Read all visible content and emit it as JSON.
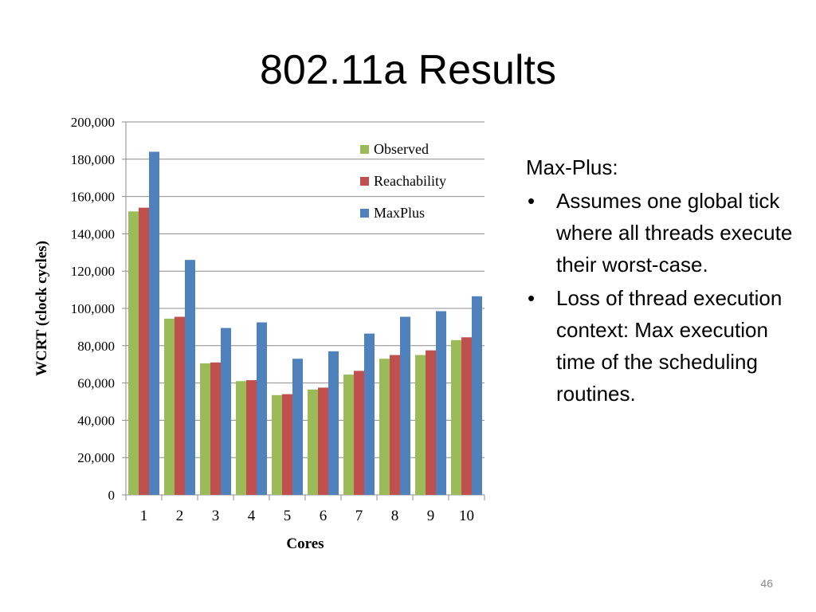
{
  "slide": {
    "title": "802.11a Results",
    "page_number": "46"
  },
  "notes": {
    "intro": "Max-Plus:",
    "bullets": [
      "Assumes one global tick where all threads execute their worst-case.",
      "Loss of thread execution context: Max execution time of the scheduling routines."
    ]
  },
  "chart_data": {
    "type": "bar",
    "categories": [
      "1",
      "2",
      "3",
      "4",
      "5",
      "6",
      "7",
      "8",
      "9",
      "10"
    ],
    "series": [
      {
        "name": "Observed",
        "color": "#9BBB59",
        "values": [
          152000,
          94500,
          70500,
          61000,
          53500,
          56500,
          64500,
          73000,
          75000,
          83000
        ]
      },
      {
        "name": "Reachability",
        "color": "#C0504D",
        "values": [
          154000,
          95500,
          71000,
          61500,
          54000,
          57500,
          66500,
          75000,
          77500,
          84500
        ]
      },
      {
        "name": "MaxPlus",
        "color": "#4F81BD",
        "values": [
          184000,
          126000,
          89500,
          92500,
          73000,
          77000,
          86500,
          95500,
          98500,
          106500
        ]
      }
    ],
    "xlabel": "Cores",
    "ylabel": "WCRT (clock cycles)",
    "ylim": [
      0,
      200000
    ],
    "yticks": [
      0,
      20000,
      40000,
      60000,
      80000,
      100000,
      120000,
      140000,
      160000,
      180000,
      200000
    ],
    "ytick_labels": [
      "0",
      "20,000",
      "40,000",
      "60,000",
      "80,000",
      "100,000",
      "120,000",
      "140,000",
      "160,000",
      "180,000",
      "200,000"
    ],
    "grid": true,
    "legend": "top-right"
  }
}
